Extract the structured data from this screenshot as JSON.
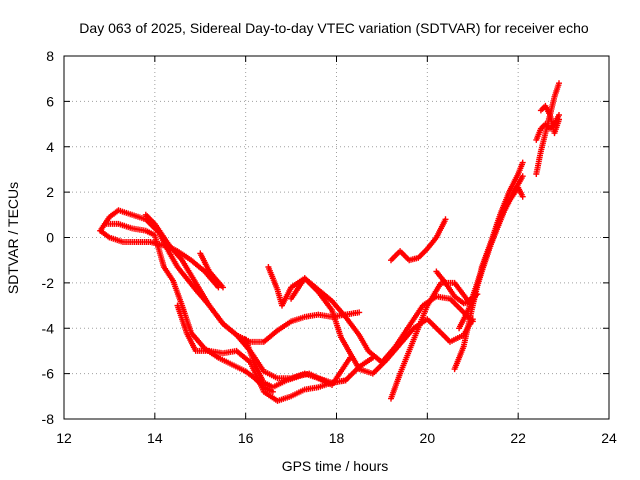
{
  "chart_data": {
    "type": "scatter",
    "title": "Day 063 of 2025, Sidereal Day-to-day VTEC variation (SDTVAR) for receiver echo",
    "xlabel": "GPS time / hours",
    "ylabel": "SDTVAR / TECUs",
    "xlim": [
      12,
      24
    ],
    "ylim": [
      -8,
      8
    ],
    "x_ticks": [
      12,
      14,
      16,
      18,
      20,
      22,
      24
    ],
    "y_ticks": [
      -8,
      -6,
      -4,
      -2,
      0,
      2,
      4,
      6,
      8
    ],
    "grid": true,
    "marker": "plus",
    "colors": {
      "series": "#ff0000",
      "grid": "#a0a0a0",
      "frame": "#000000"
    },
    "series": [
      {
        "x": [
          12.8,
          13.0,
          13.2,
          13.5,
          13.8,
          14.1,
          14.3,
          14.5,
          14.7,
          14.9,
          15.2,
          15.5,
          15.8,
          16.1,
          16.4,
          16.7,
          17.0,
          17.3,
          17.6,
          17.9,
          18.2,
          18.5
        ],
        "y": [
          0.3,
          0.9,
          1.2,
          1.0,
          0.8,
          0.2,
          -0.6,
          -1.3,
          -1.8,
          -2.3,
          -3.0,
          -3.8,
          -4.3,
          -4.6,
          -4.6,
          -4.1,
          -3.7,
          -3.5,
          -3.4,
          -3.5,
          -3.4,
          -3.3
        ]
      },
      {
        "x": [
          12.8,
          13.0,
          13.3,
          13.6,
          13.9,
          14.1,
          14.3,
          14.5,
          14.8,
          15.1,
          15.4
        ],
        "y": [
          0.3,
          0.0,
          -0.2,
          -0.2,
          -0.2,
          -0.3,
          -0.4,
          -0.6,
          -1.0,
          -1.5,
          -2.2
        ]
      },
      {
        "x": [
          12.9,
          13.2,
          13.5,
          13.8,
          14.0,
          14.1,
          14.2,
          14.4,
          14.6,
          14.8,
          15.1,
          15.4,
          15.7,
          16.0,
          16.2,
          16.4,
          16.6
        ],
        "y": [
          0.6,
          0.6,
          0.4,
          0.3,
          0.1,
          -0.6,
          -1.3,
          -1.9,
          -3.0,
          -4.2,
          -4.9,
          -5.3,
          -5.6,
          -5.9,
          -6.2,
          -6.6,
          -6.8
        ]
      },
      {
        "x": [
          13.8,
          14.0,
          14.3,
          14.6,
          14.9,
          15.2,
          15.5,
          15.8,
          16.1,
          16.4,
          16.7,
          17.0,
          17.3,
          17.6,
          17.9,
          18.2,
          18.5,
          18.8
        ],
        "y": [
          1.0,
          0.6,
          -0.3,
          -1.0,
          -2.0,
          -3.0,
          -3.8,
          -4.3,
          -5.0,
          -5.9,
          -6.2,
          -6.2,
          -6.0,
          -6.2,
          -6.4,
          -6.3,
          -5.7,
          -5.3
        ]
      },
      {
        "x": [
          14.5,
          14.7,
          14.9,
          15.2,
          15.5,
          15.8,
          16.1,
          16.4,
          16.7,
          17.0,
          17.3,
          17.6,
          17.9,
          18.2
        ],
        "y": [
          -3.0,
          -4.2,
          -5.0,
          -5.0,
          -5.1,
          -5.0,
          -5.5,
          -6.8,
          -7.2,
          -7.0,
          -6.7,
          -6.6,
          -6.4,
          -6.3
        ]
      },
      {
        "x": [
          15.0,
          15.2,
          15.5
        ],
        "y": [
          -0.7,
          -1.5,
          -2.2
        ]
      },
      {
        "x": [
          16.0,
          16.2,
          16.4,
          16.6,
          16.9,
          17.2,
          17.4,
          17.7,
          17.9,
          18.1,
          18.3
        ],
        "y": [
          -4.5,
          -5.6,
          -6.4,
          -6.6,
          -6.3,
          -6.1,
          -6.0,
          -6.3,
          -6.5,
          -5.9,
          -5.3
        ]
      },
      {
        "x": [
          16.5,
          16.6,
          16.7,
          16.8,
          17.0,
          17.3,
          17.6,
          17.9,
          18.1,
          18.3,
          18.5,
          18.8,
          19.1,
          19.4,
          19.7,
          20.0,
          20.2,
          20.5,
          20.8,
          21.0
        ],
        "y": [
          -1.3,
          -1.8,
          -2.3,
          -3.0,
          -2.2,
          -1.8,
          -2.4,
          -3.2,
          -4.4,
          -5.1,
          -5.8,
          -6.0,
          -5.4,
          -4.7,
          -4.0,
          -3.6,
          -4.0,
          -4.6,
          -4.3,
          -3.6
        ]
      },
      {
        "x": [
          17.0,
          17.3,
          17.6,
          17.9,
          18.2,
          18.5,
          18.7,
          19.0,
          19.3,
          19.6,
          19.9,
          20.2,
          20.5,
          20.8,
          21.0
        ],
        "y": [
          -2.7,
          -1.8,
          -2.3,
          -2.8,
          -3.5,
          -4.3,
          -5.0,
          -5.5,
          -4.8,
          -3.9,
          -3.0,
          -2.6,
          -2.7,
          -3.3,
          -3.7
        ]
      },
      {
        "x": [
          19.2,
          19.4,
          19.6,
          19.8,
          20.0,
          20.2,
          20.4
        ],
        "y": [
          -1.0,
          -0.6,
          -1.0,
          -0.9,
          -0.5,
          0.0,
          0.8
        ]
      },
      {
        "x": [
          19.2,
          19.4,
          19.7,
          20.0,
          20.3,
          20.6,
          20.9,
          21.1
        ],
        "y": [
          -7.1,
          -6.0,
          -4.5,
          -3.0,
          -2.0,
          -2.0,
          -2.8,
          -2.5
        ]
      },
      {
        "x": [
          20.2,
          20.4,
          20.6,
          20.8,
          21.0,
          21.2,
          21.4,
          21.6,
          21.8,
          22.0,
          22.1
        ],
        "y": [
          -1.5,
          -2.0,
          -2.6,
          -2.9,
          -2.8,
          -1.5,
          -0.3,
          0.8,
          1.6,
          2.2,
          1.8
        ]
      },
      {
        "x": [
          20.6,
          20.8,
          21.0,
          21.2,
          21.4,
          21.6,
          21.8,
          22.0,
          22.1
        ],
        "y": [
          -5.8,
          -4.8,
          -3.0,
          -1.3,
          -0.2,
          1.0,
          2.0,
          2.8,
          3.3
        ]
      },
      {
        "x": [
          20.7,
          20.9,
          21.1,
          21.3,
          21.5,
          21.7,
          21.9,
          22.1
        ],
        "y": [
          -4.0,
          -3.2,
          -2.0,
          -0.8,
          0.2,
          1.2,
          2.0,
          2.7
        ]
      },
      {
        "x": [
          22.4,
          22.5,
          22.6,
          22.7,
          22.8,
          22.9
        ],
        "y": [
          2.8,
          3.8,
          4.6,
          5.4,
          6.2,
          6.8
        ]
      },
      {
        "x": [
          22.4,
          22.5,
          22.6,
          22.7,
          22.8,
          22.9
        ],
        "y": [
          4.3,
          4.8,
          5.0,
          4.8,
          5.0,
          5.4
        ]
      },
      {
        "x": [
          22.5,
          22.6,
          22.7,
          22.8,
          22.9
        ],
        "y": [
          5.6,
          5.8,
          5.4,
          4.6,
          5.2
        ]
      }
    ]
  }
}
